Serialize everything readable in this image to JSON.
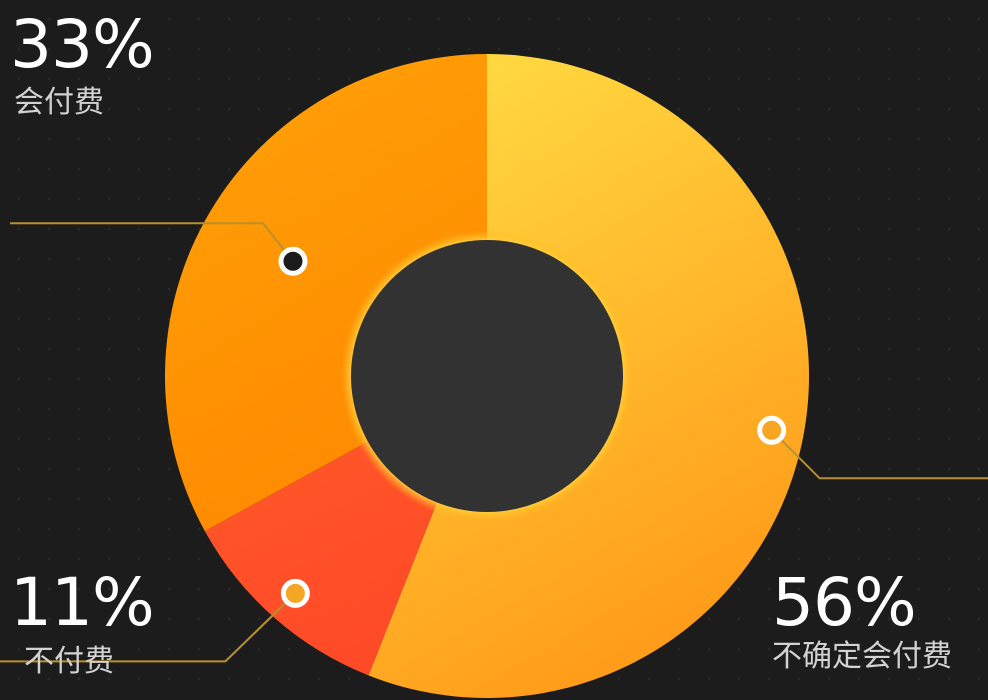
{
  "colors": {
    "background": "#1c1c1c",
    "hole": "#323232",
    "leader_line": "#b8902e",
    "marker_ring": "#ffffff"
  },
  "chart_data": {
    "type": "pie",
    "donut": true,
    "title": "",
    "start_angle_deg": 0,
    "direction": "clockwise",
    "slices": [
      {
        "label": "不确定会付费",
        "value": 56,
        "value_label": "56%",
        "color_start": "#ffdf44",
        "color_end": "#ff9d1a",
        "marker_fill": "#f5a623",
        "label_position": "bottom-right"
      },
      {
        "label": "不付费",
        "value": 11,
        "value_label": "11%",
        "color_start": "#ff5a28",
        "color_end": "#ff4a28",
        "marker_fill": "#f5a623",
        "label_position": "bottom-left"
      },
      {
        "label": "会付费",
        "value": 33,
        "value_label": "33%",
        "color_start": "#ffa208",
        "color_end": "#ff8a00",
        "marker_fill": "#1c1c1c",
        "label_position": "top-left"
      }
    ]
  }
}
